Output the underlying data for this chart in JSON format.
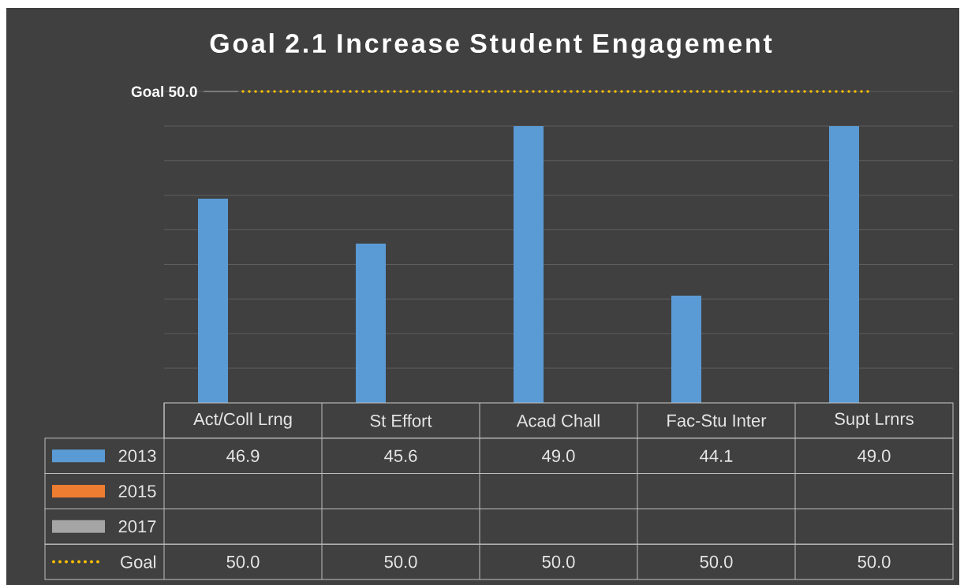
{
  "chart_data": {
    "type": "bar",
    "title": "Goal 2.1 Increase Student Engagement",
    "categories": [
      "Act/Coll Lrng",
      "St Effort",
      "Acad Chall",
      "Fac-Stu Inter",
      "Supt Lrnrs"
    ],
    "series": [
      {
        "name": "2013",
        "color": "#5b9bd5",
        "values": [
          46.9,
          45.6,
          49.0,
          44.1,
          49.0
        ],
        "value_labels": [
          "46.9",
          "45.6",
          "49.0",
          "44.1",
          "49.0"
        ]
      },
      {
        "name": "2015",
        "color": "#ed7d31",
        "values": [
          null,
          null,
          null,
          null,
          null
        ]
      },
      {
        "name": "2017",
        "color": "#a5a5a5",
        "values": [
          null,
          null,
          null,
          null,
          null
        ]
      },
      {
        "name": "Goal",
        "type": "line",
        "color": "#ffc000",
        "line_style": "dotted",
        "values": [
          50.0,
          50.0,
          50.0,
          50.0,
          50.0
        ],
        "value_labels": [
          "50.0",
          "50.0",
          "50.0",
          "50.0",
          "50.0"
        ]
      }
    ],
    "annotations": [
      "Goal 50.0"
    ],
    "ylim": [
      41,
      50
    ],
    "yticks": [
      {
        "value": 41,
        "label": null
      },
      {
        "value": 42,
        "label": null
      },
      {
        "value": 43,
        "label": null
      },
      {
        "value": 44,
        "label": null
      },
      {
        "value": 45,
        "label": null
      },
      {
        "value": 46,
        "label": null
      },
      {
        "value": 47,
        "label": null
      },
      {
        "value": 48,
        "label": null
      },
      {
        "value": 49,
        "label": null
      },
      {
        "value": 50,
        "label": null
      }
    ],
    "grid": "y",
    "legend": "bottom"
  }
}
